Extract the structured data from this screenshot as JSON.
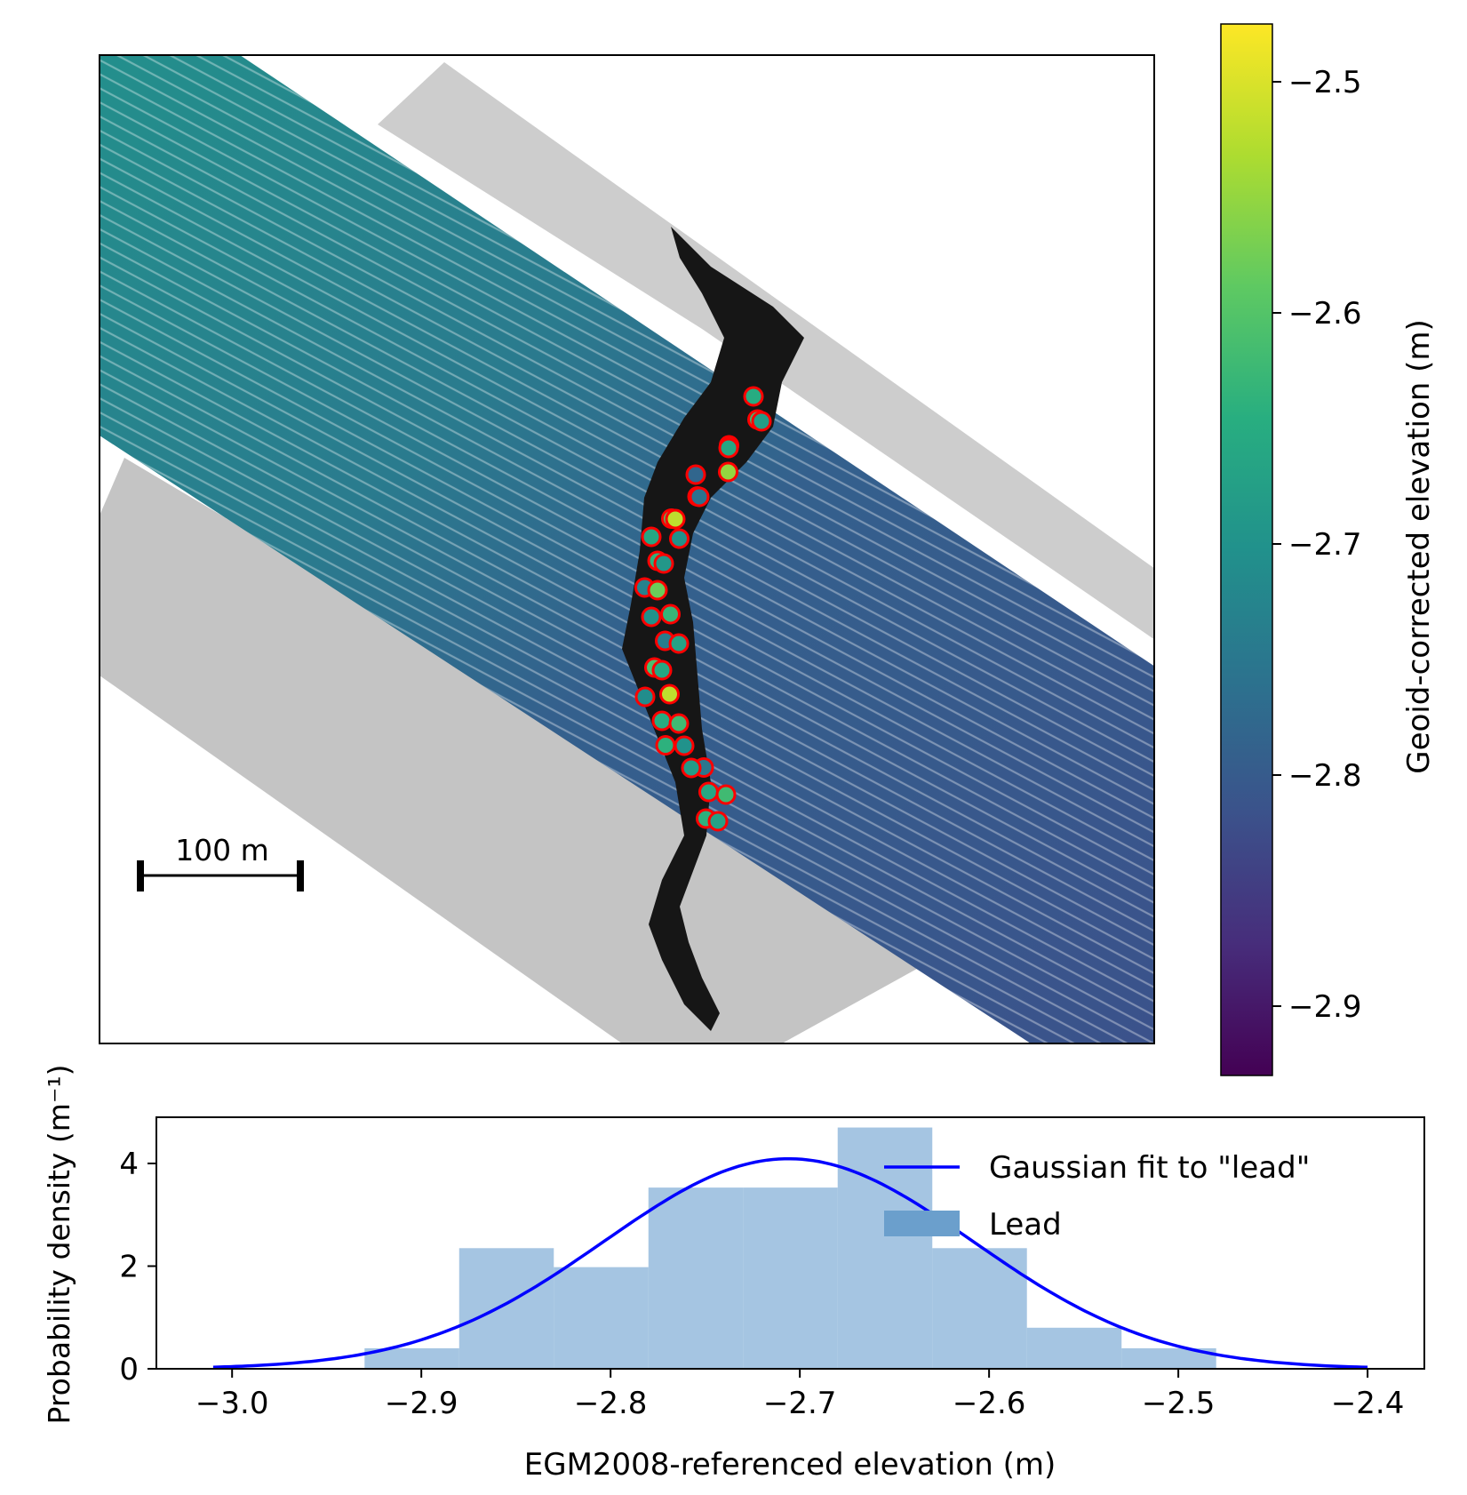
{
  "map_panel": {
    "scale_bar_label": "100 m",
    "colorbar": {
      "label": "Geoid-corrected elevation (m)",
      "cmap": "viridis",
      "min": -2.93,
      "max": -2.475,
      "ticks": [
        -2.5,
        -2.6,
        -2.7,
        -2.8,
        -2.9
      ],
      "tick_labels": [
        "−2.5",
        "−2.6",
        "−2.7",
        "−2.8",
        "−2.9"
      ]
    },
    "colors": {
      "marker_edge": "#ff0000",
      "lead_fill": "#161616",
      "ice_fill": "#c9c9c9"
    },
    "lead_points": [
      -2.65,
      -2.62,
      -2.68,
      -2.72,
      -2.66,
      -2.55,
      -2.78,
      -2.8,
      -2.76,
      -2.6,
      -2.52,
      -2.7,
      -2.66,
      -2.64,
      -2.69,
      -2.73,
      -2.58,
      -2.63,
      -2.7,
      -2.74,
      -2.67,
      -2.61,
      -2.66,
      -2.52,
      -2.71,
      -2.65,
      -2.62,
      -2.64,
      -2.7,
      -2.75,
      -2.68,
      -2.66,
      -2.62,
      -2.64,
      -2.67
    ]
  },
  "chart_data": {
    "type": "bar",
    "title": "",
    "xlabel": "EGM2008-referenced elevation (m)",
    "ylabel": "Probability density (m⁻¹)",
    "xlim": [
      -3.04,
      -2.37
    ],
    "ylim": [
      0,
      4.9
    ],
    "xticks": [
      -3.0,
      -2.9,
      -2.8,
      -2.7,
      -2.6,
      -2.5,
      -2.4
    ],
    "xtick_labels": [
      "−3.0",
      "−2.9",
      "−2.8",
      "−2.7",
      "−2.6",
      "−2.5",
      "−2.4"
    ],
    "yticks": [
      0,
      2,
      4
    ],
    "ytick_labels": [
      "0",
      "2",
      "4"
    ],
    "histogram": {
      "name": "Lead",
      "color": "#7aaad4",
      "bin_edges": [
        -2.93,
        -2.88,
        -2.83,
        -2.78,
        -2.73,
        -2.68,
        -2.63,
        -2.58,
        -2.53,
        -2.48
      ],
      "values": [
        0.4,
        2.35,
        1.98,
        3.53,
        3.53,
        4.7,
        2.35,
        0.8,
        0.4
      ]
    },
    "gaussian_fit": {
      "name": "Gaussian fit to \"lead\"",
      "color": "#0000ff",
      "mean": -2.706,
      "std": 0.0975,
      "x_range": [
        -3.01,
        -2.4
      ]
    },
    "legend": {
      "position": "top-right",
      "entries": [
        "Gaussian fit to \"lead\"",
        "Lead"
      ]
    }
  }
}
